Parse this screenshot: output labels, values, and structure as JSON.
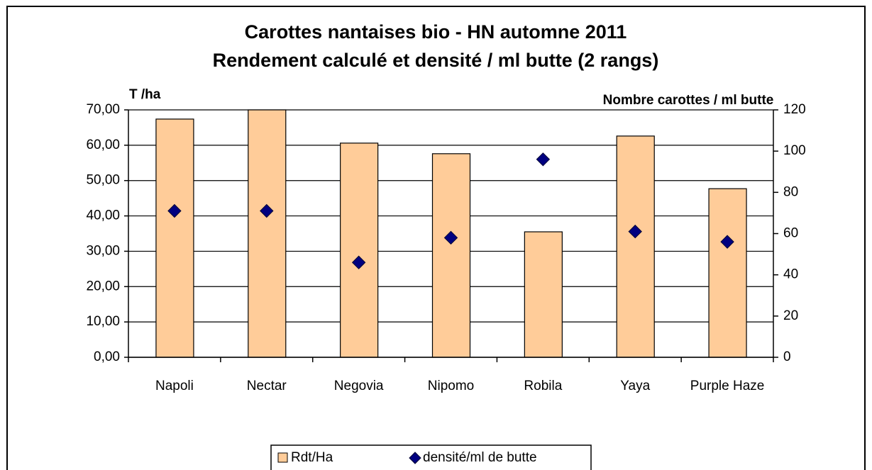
{
  "chart_data": {
    "type": "bar_scatter",
    "title": "Carottes nantaises bio - HN automne 2011",
    "subtitle": "Rendement calculé et densité / ml butte (2 rangs)",
    "y_label": "T /ha",
    "y2_label": "Nombre carottes / ml butte",
    "categories": [
      "Napoli",
      "Nectar",
      "Negovia",
      "Nipomo",
      "Robila",
      "Yaya",
      "Purple Haze"
    ],
    "series": [
      {
        "name": "Rdt/Ha",
        "color": "#FFCC99",
        "kind": "bar",
        "values": [
          67.4,
          70.0,
          60.6,
          57.6,
          35.5,
          62.6,
          47.7
        ]
      },
      {
        "name": "densité/ml de butte",
        "color": "#000080",
        "kind": "diamond",
        "axis": "y2",
        "values": [
          71,
          71,
          46,
          58,
          96,
          61,
          56
        ]
      }
    ],
    "ylim": [
      0,
      70
    ],
    "yticks": [
      {
        "value": 0,
        "label": "0,00"
      },
      {
        "value": 10,
        "label": "10,00"
      },
      {
        "value": 20,
        "label": "20,00"
      },
      {
        "value": 30,
        "label": "30,00"
      },
      {
        "value": 40,
        "label": "40,00"
      },
      {
        "value": 50,
        "label": "50,00"
      },
      {
        "value": 60,
        "label": "60,00"
      },
      {
        "value": 70,
        "label": "70,00"
      }
    ],
    "y2lim": [
      0,
      120
    ],
    "y2ticks": [
      0,
      20,
      40,
      60,
      80,
      100,
      120
    ],
    "grid": true,
    "legend": "bottom"
  }
}
